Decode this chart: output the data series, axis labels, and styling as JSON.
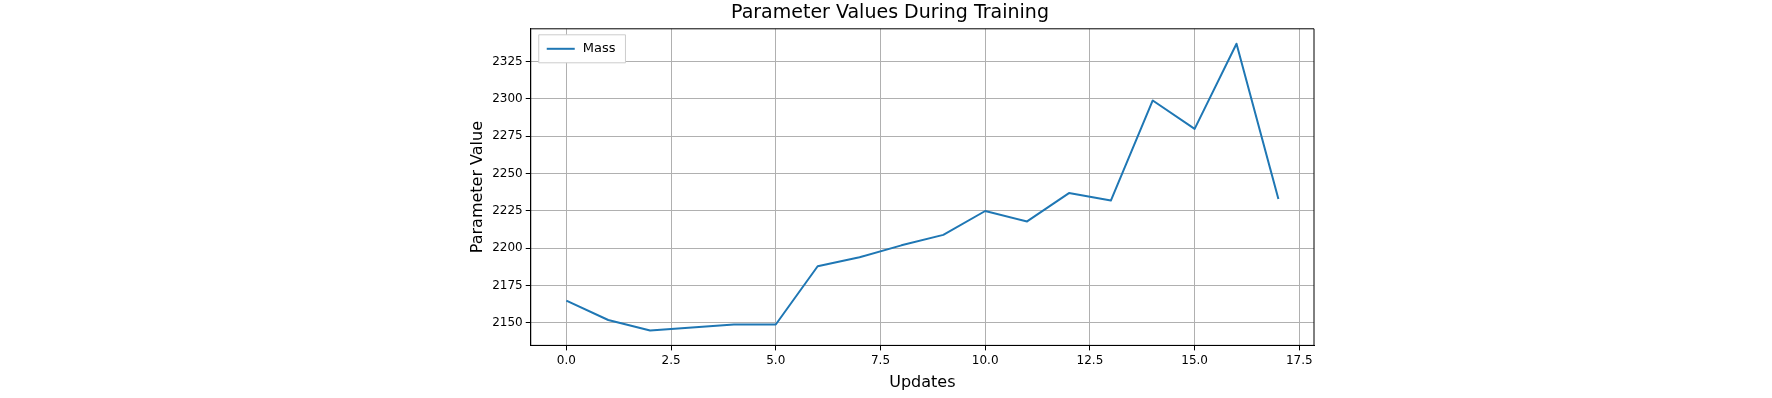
{
  "chart_data": {
    "type": "line",
    "title": "Parameter Values During Training",
    "xlabel": "Updates",
    "ylabel": "Parameter Value",
    "x": [
      0,
      1,
      2,
      3,
      4,
      5,
      6,
      7,
      8,
      9,
      10,
      11,
      12,
      13,
      14,
      15,
      16,
      17
    ],
    "series": [
      {
        "name": "Mass",
        "color": "#1f77b4",
        "values": [
          2165,
          2152,
          2145,
          2147,
          2149,
          2149,
          2188,
          2194,
          2202,
          2209,
          2225,
          2218,
          2237,
          2232,
          2299,
          2280,
          2337,
          2233
        ]
      }
    ],
    "xlim": [
      -0.85,
      17.85
    ],
    "xticks": [
      {
        "value": 0,
        "label": "0.0"
      },
      {
        "value": 2.5,
        "label": "2.5"
      },
      {
        "value": 5,
        "label": "5.0"
      },
      {
        "value": 7.5,
        "label": "7.5"
      },
      {
        "value": 10,
        "label": "10.0"
      },
      {
        "value": 12.5,
        "label": "12.5"
      },
      {
        "value": 15,
        "label": "15.0"
      },
      {
        "value": 17.5,
        "label": "17.5"
      }
    ],
    "ylim": [
      2135,
      2347
    ],
    "yticks": [
      2150,
      2175,
      2200,
      2225,
      2250,
      2275,
      2300,
      2325
    ],
    "grid": true,
    "legend": "top left",
    "marker": "none",
    "line_style": "solid"
  }
}
